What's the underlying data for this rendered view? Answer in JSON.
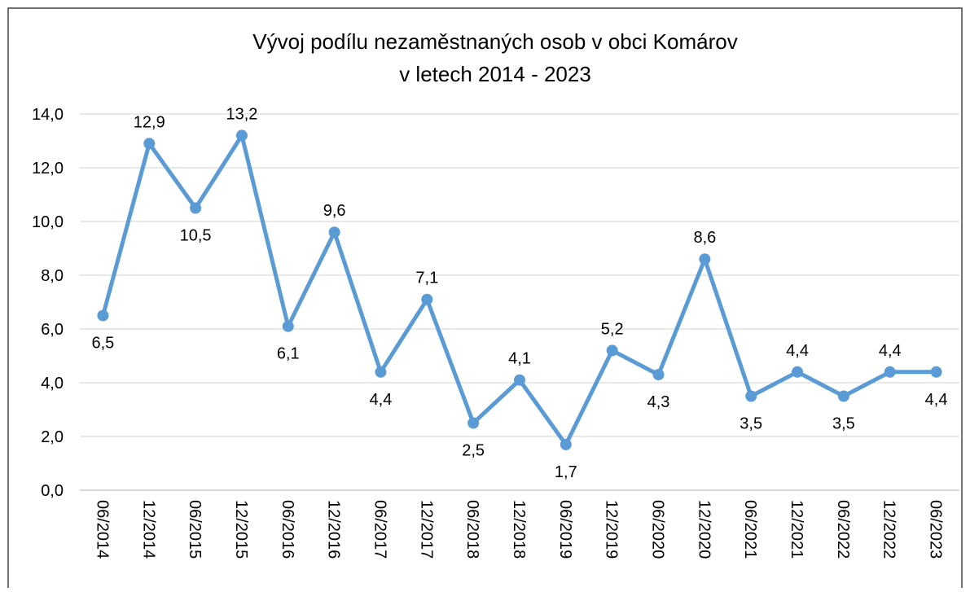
{
  "chart_data": {
    "type": "line",
    "title": [
      "Vývoj podílu nezaměstnaných osob v obci Komárov",
      "v letech 2014 - 2023"
    ],
    "categories": [
      "06/2014",
      "12/2014",
      "06/2015",
      "12/2015",
      "06/2016",
      "12/2016",
      "06/2017",
      "12/2017",
      "06/2018",
      "12/2018",
      "06/2019",
      "12/2019",
      "06/2020",
      "12/2020",
      "06/2021",
      "12/2021",
      "06/2022",
      "12/2022",
      "06/2023"
    ],
    "series": [
      {
        "color": "#5b9bd5",
        "values": [
          6.5,
          12.9,
          10.5,
          13.2,
          6.1,
          9.6,
          4.4,
          7.1,
          2.5,
          4.1,
          1.7,
          5.2,
          4.3,
          8.6,
          3.5,
          4.4,
          3.5,
          4.4,
          4.4
        ],
        "value_labels": [
          "6,5",
          "12,9",
          "10,5",
          "13,2",
          "6,1",
          "9,6",
          "4,4",
          "7,1",
          "2,5",
          "4,1",
          "1,7",
          "5,2",
          "4,3",
          "8,6",
          "3,5",
          "4,4",
          "3,5",
          "4,4",
          "4,4"
        ]
      }
    ],
    "ylim": [
      0,
      14
    ],
    "yticks": [
      {
        "value": 0,
        "label": "0,0"
      },
      {
        "value": 2,
        "label": "2,0"
      },
      {
        "value": 4,
        "label": "4,0"
      },
      {
        "value": 6,
        "label": "6,0"
      },
      {
        "value": 8,
        "label": "8,0"
      },
      {
        "value": 10,
        "label": "10,0"
      },
      {
        "value": 12,
        "label": "12,0"
      },
      {
        "value": 14,
        "label": "14,0"
      }
    ],
    "grid": true
  }
}
